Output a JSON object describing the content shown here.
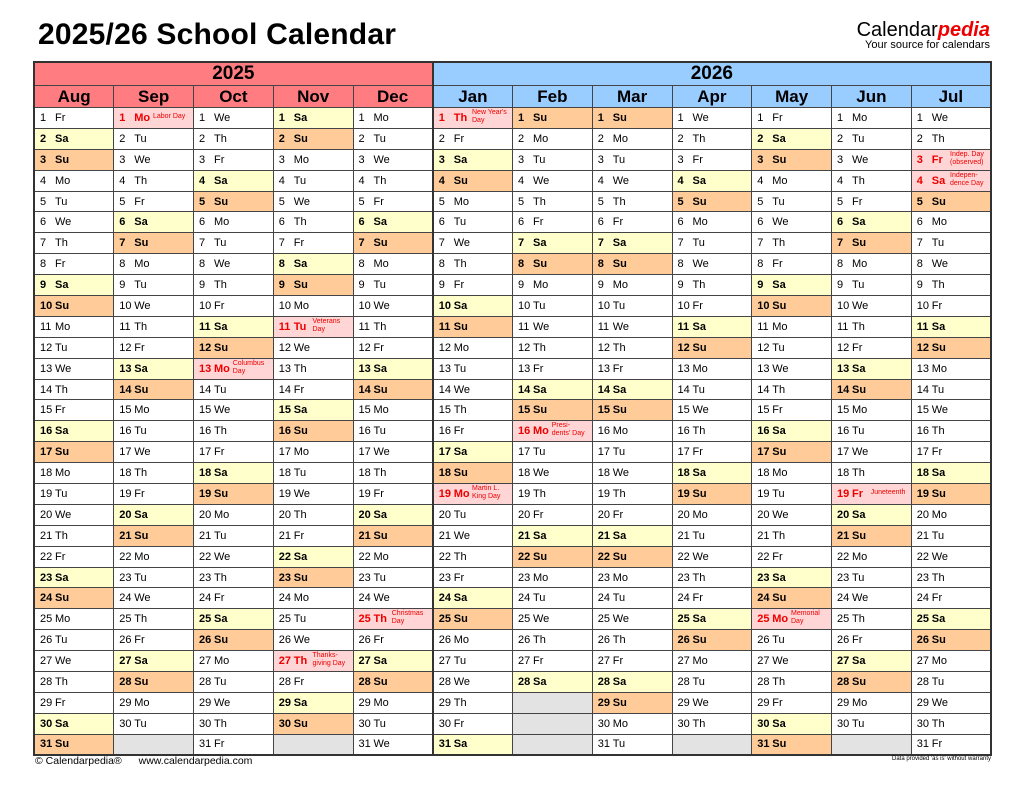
{
  "title": "2025/26 School Calendar",
  "brand": {
    "name_a": "Calendar",
    "name_b": "pedia",
    "tagline": "Your source for calendars"
  },
  "years": [
    "2025",
    "2026"
  ],
  "colors": {
    "year_2025": "#ff7c80",
    "year_2026": "#99ccff",
    "saturday": "#ffffcc",
    "sunday": "#ffcc99",
    "holiday": "#ffd5d5",
    "holiday_text": "#ee0000",
    "empty": "#e3e3e3"
  },
  "months": [
    {
      "name": "Aug",
      "year": "2025",
      "days": [
        "Fr",
        "Sa",
        "Su",
        "Mo",
        "Tu",
        "We",
        "Th",
        "Fr",
        "Sa",
        "Su",
        "Mo",
        "Tu",
        "We",
        "Th",
        "Fr",
        "Sa",
        "Su",
        "Mo",
        "Tu",
        "We",
        "Th",
        "Fr",
        "Sa",
        "Su",
        "Mo",
        "Tu",
        "We",
        "Th",
        "Fr",
        "Sa",
        "Su"
      ],
      "holidays": {}
    },
    {
      "name": "Sep",
      "year": "2025",
      "days": [
        "Mo",
        "Tu",
        "We",
        "Th",
        "Fr",
        "Sa",
        "Su",
        "Mo",
        "Tu",
        "We",
        "Th",
        "Fr",
        "Sa",
        "Su",
        "Mo",
        "Tu",
        "We",
        "Th",
        "Fr",
        "Sa",
        "Su",
        "Mo",
        "Tu",
        "We",
        "Th",
        "Fr",
        "Sa",
        "Su",
        "Mo",
        "Tu"
      ],
      "holidays": {
        "1": "Labor Day"
      }
    },
    {
      "name": "Oct",
      "year": "2025",
      "days": [
        "We",
        "Th",
        "Fr",
        "Sa",
        "Su",
        "Mo",
        "Tu",
        "We",
        "Th",
        "Fr",
        "Sa",
        "Su",
        "Mo",
        "Tu",
        "We",
        "Th",
        "Fr",
        "Sa",
        "Su",
        "Mo",
        "Tu",
        "We",
        "Th",
        "Fr",
        "Sa",
        "Su",
        "Mo",
        "Tu",
        "We",
        "Th",
        "Fr"
      ],
      "holidays": {
        "13": "Columbus Day"
      }
    },
    {
      "name": "Nov",
      "year": "2025",
      "days": [
        "Sa",
        "Su",
        "Mo",
        "Tu",
        "We",
        "Th",
        "Fr",
        "Sa",
        "Su",
        "Mo",
        "Tu",
        "We",
        "Th",
        "Fr",
        "Sa",
        "Su",
        "Mo",
        "Tu",
        "We",
        "Th",
        "Fr",
        "Sa",
        "Su",
        "Mo",
        "Tu",
        "We",
        "Th",
        "Fr",
        "Sa",
        "Su"
      ],
      "holidays": {
        "11": "Veterans Day",
        "27": "Thanks-giving Day"
      }
    },
    {
      "name": "Dec",
      "year": "2025",
      "days": [
        "Mo",
        "Tu",
        "We",
        "Th",
        "Fr",
        "Sa",
        "Su",
        "Mo",
        "Tu",
        "We",
        "Th",
        "Fr",
        "Sa",
        "Su",
        "Mo",
        "Tu",
        "We",
        "Th",
        "Fr",
        "Sa",
        "Su",
        "Mo",
        "Tu",
        "We",
        "Th",
        "Fr",
        "Sa",
        "Su",
        "Mo",
        "Tu",
        "We"
      ],
      "holidays": {
        "25": "Christmas Day"
      }
    },
    {
      "name": "Jan",
      "year": "2026",
      "days": [
        "Th",
        "Fr",
        "Sa",
        "Su",
        "Mo",
        "Tu",
        "We",
        "Th",
        "Fr",
        "Sa",
        "Su",
        "Mo",
        "Tu",
        "We",
        "Th",
        "Fr",
        "Sa",
        "Su",
        "Mo",
        "Tu",
        "We",
        "Th",
        "Fr",
        "Sa",
        "Su",
        "Mo",
        "Tu",
        "We",
        "Th",
        "Fr",
        "Sa"
      ],
      "holidays": {
        "1": "New Year's Day",
        "19": "Martin L. King Day"
      }
    },
    {
      "name": "Feb",
      "year": "2026",
      "days": [
        "Su",
        "Mo",
        "Tu",
        "We",
        "Th",
        "Fr",
        "Sa",
        "Su",
        "Mo",
        "Tu",
        "We",
        "Th",
        "Fr",
        "Sa",
        "Su",
        "Mo",
        "Tu",
        "We",
        "Th",
        "Fr",
        "Sa",
        "Su",
        "Mo",
        "Tu",
        "We",
        "Th",
        "Fr",
        "Sa"
      ],
      "holidays": {
        "16": "Presi-dents' Day"
      }
    },
    {
      "name": "Mar",
      "year": "2026",
      "days": [
        "Su",
        "Mo",
        "Tu",
        "We",
        "Th",
        "Fr",
        "Sa",
        "Su",
        "Mo",
        "Tu",
        "We",
        "Th",
        "Fr",
        "Sa",
        "Su",
        "Mo",
        "Tu",
        "We",
        "Th",
        "Fr",
        "Sa",
        "Su",
        "Mo",
        "Tu",
        "We",
        "Th",
        "Fr",
        "Sa",
        "Su",
        "Mo",
        "Tu"
      ],
      "holidays": {}
    },
    {
      "name": "Apr",
      "year": "2026",
      "days": [
        "We",
        "Th",
        "Fr",
        "Sa",
        "Su",
        "Mo",
        "Tu",
        "We",
        "Th",
        "Fr",
        "Sa",
        "Su",
        "Mo",
        "Tu",
        "We",
        "Th",
        "Fr",
        "Sa",
        "Su",
        "Mo",
        "Tu",
        "We",
        "Th",
        "Fr",
        "Sa",
        "Su",
        "Mo",
        "Tu",
        "We",
        "Th"
      ],
      "holidays": {}
    },
    {
      "name": "May",
      "year": "2026",
      "days": [
        "Fr",
        "Sa",
        "Su",
        "Mo",
        "Tu",
        "We",
        "Th",
        "Fr",
        "Sa",
        "Su",
        "Mo",
        "Tu",
        "We",
        "Th",
        "Fr",
        "Sa",
        "Su",
        "Mo",
        "Tu",
        "We",
        "Th",
        "Fr",
        "Sa",
        "Su",
        "Mo",
        "Tu",
        "We",
        "Th",
        "Fr",
        "Sa",
        "Su"
      ],
      "holidays": {
        "25": "Memorial Day"
      }
    },
    {
      "name": "Jun",
      "year": "2026",
      "days": [
        "Mo",
        "Tu",
        "We",
        "Th",
        "Fr",
        "Sa",
        "Su",
        "Mo",
        "Tu",
        "We",
        "Th",
        "Fr",
        "Sa",
        "Su",
        "Mo",
        "Tu",
        "We",
        "Th",
        "Fr",
        "Sa",
        "Su",
        "Mo",
        "Tu",
        "We",
        "Th",
        "Fr",
        "Sa",
        "Su",
        "Mo",
        "Tu"
      ],
      "holidays": {
        "19": "Juneteenth"
      }
    },
    {
      "name": "Jul",
      "year": "2026",
      "days": [
        "We",
        "Th",
        "Fr",
        "Sa",
        "Su",
        "Mo",
        "Tu",
        "We",
        "Th",
        "Fr",
        "Sa",
        "Su",
        "Mo",
        "Tu",
        "We",
        "Th",
        "Fr",
        "Sa",
        "Su",
        "Mo",
        "Tu",
        "We",
        "Th",
        "Fr",
        "Sa",
        "Su",
        "Mo",
        "Tu",
        "We",
        "Th",
        "Fr"
      ],
      "holidays": {
        "3": "Indep. Day (observed)",
        "4": "Indepen-dence Day"
      }
    }
  ],
  "footer": {
    "copyright": "© Calendarpedia®",
    "website": "www.calendarpedia.com",
    "disclaimer": "Data provided 'as is' without warranty"
  }
}
